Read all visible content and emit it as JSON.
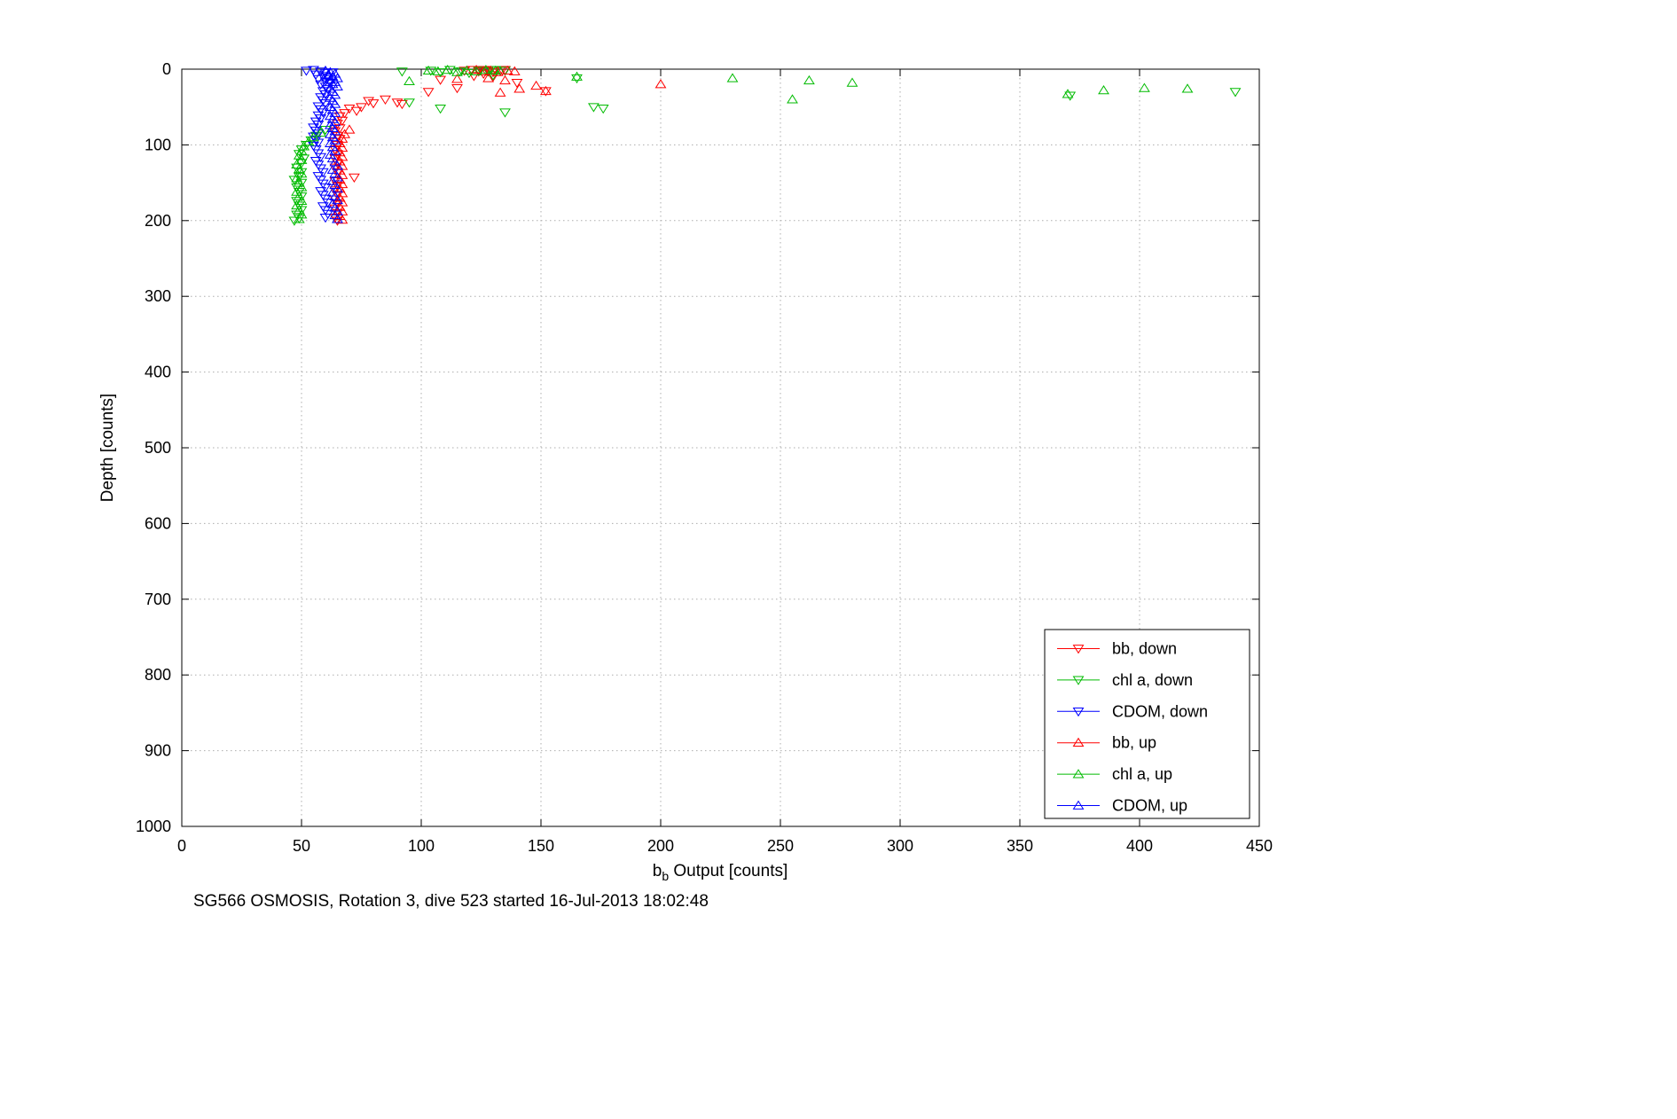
{
  "chart_data": {
    "type": "scatter",
    "title": "SG566 OSMOSIS, Rotation 3, dive 523 started 16-Jul-2013 18:02:48",
    "xlabel": "b_b Output [counts]",
    "xlabel_parts": {
      "pre": "b",
      "sub": "b",
      "post": " Output [counts]"
    },
    "ylabel": "Depth [counts]",
    "xlim": [
      0,
      450
    ],
    "ylim": [
      0,
      1000
    ],
    "y_axis_reversed": true,
    "grid": "dotted",
    "grid_color": "#adadad",
    "axis_color": "#000000",
    "x_ticks": [
      0,
      50,
      100,
      150,
      200,
      250,
      300,
      350,
      400,
      450
    ],
    "y_ticks": [
      0,
      100,
      200,
      300,
      400,
      500,
      600,
      700,
      800,
      900,
      1000
    ],
    "legend_position": "bottom-right-inside",
    "series": [
      {
        "name": "bb, down",
        "marker": "triangle-down",
        "color": "#ff0000",
        "points": [
          [
            118,
            2
          ],
          [
            121,
            1
          ],
          [
            124,
            3
          ],
          [
            127,
            2
          ],
          [
            130,
            4
          ],
          [
            133,
            2
          ],
          [
            126,
            6
          ],
          [
            122,
            9
          ],
          [
            130,
            10
          ],
          [
            135,
            1
          ],
          [
            128,
            1
          ],
          [
            124,
            1
          ],
          [
            108,
            14
          ],
          [
            115,
            25
          ],
          [
            103,
            30
          ],
          [
            152,
            29
          ],
          [
            140,
            18
          ],
          [
            90,
            44
          ],
          [
            85,
            40
          ],
          [
            78,
            42
          ],
          [
            80,
            45
          ],
          [
            92,
            46
          ],
          [
            75,
            50
          ],
          [
            73,
            55
          ],
          [
            70,
            52
          ],
          [
            68,
            58
          ],
          [
            66,
            62
          ],
          [
            67,
            68
          ],
          [
            65,
            72
          ],
          [
            66,
            78
          ],
          [
            64,
            82
          ],
          [
            65,
            88
          ],
          [
            66,
            92
          ],
          [
            64,
            96
          ],
          [
            65,
            100
          ],
          [
            64,
            106
          ],
          [
            65,
            112
          ],
          [
            64,
            118
          ],
          [
            65,
            124
          ],
          [
            64,
            130
          ],
          [
            65,
            136
          ],
          [
            72,
            143
          ],
          [
            64,
            148
          ],
          [
            65,
            154
          ],
          [
            64,
            160
          ],
          [
            65,
            166
          ],
          [
            64,
            172
          ],
          [
            65,
            178
          ],
          [
            64,
            184
          ],
          [
            65,
            190
          ],
          [
            64,
            196
          ],
          [
            65,
            200
          ]
        ]
      },
      {
        "name": "chl a, down",
        "marker": "triangle-down",
        "color": "#00bb00",
        "points": [
          [
            92,
            3
          ],
          [
            104,
            2
          ],
          [
            108,
            4
          ],
          [
            112,
            1
          ],
          [
            116,
            3
          ],
          [
            120,
            5
          ],
          [
            124,
            2
          ],
          [
            128,
            3
          ],
          [
            131,
            1
          ],
          [
            135,
            2
          ],
          [
            130,
            8
          ],
          [
            165,
            12
          ],
          [
            440,
            30
          ],
          [
            371,
            35
          ],
          [
            172,
            50
          ],
          [
            176,
            52
          ],
          [
            135,
            57
          ],
          [
            108,
            52
          ],
          [
            95,
            44
          ],
          [
            60,
            80
          ],
          [
            56,
            88
          ],
          [
            54,
            94
          ],
          [
            52,
            100
          ],
          [
            50,
            106
          ],
          [
            49,
            112
          ],
          [
            51,
            118
          ],
          [
            50,
            124
          ],
          [
            48,
            130
          ],
          [
            50,
            136
          ],
          [
            49,
            142
          ],
          [
            47,
            146
          ],
          [
            50,
            150
          ],
          [
            48,
            156
          ],
          [
            49,
            162
          ],
          [
            50,
            168
          ],
          [
            48,
            174
          ],
          [
            49,
            180
          ],
          [
            50,
            186
          ],
          [
            48,
            192
          ],
          [
            49,
            197
          ],
          [
            47,
            200
          ]
        ]
      },
      {
        "name": "CDOM, down",
        "marker": "triangle-down",
        "color": "#0000ff",
        "points": [
          [
            52,
            2
          ],
          [
            55,
            1
          ],
          [
            58,
            3
          ],
          [
            60,
            5
          ],
          [
            63,
            4
          ],
          [
            56,
            7
          ],
          [
            59,
            9
          ],
          [
            61,
            11
          ],
          [
            57,
            13
          ],
          [
            60,
            16
          ],
          [
            62,
            18
          ],
          [
            58,
            20
          ],
          [
            60,
            23
          ],
          [
            61,
            26
          ],
          [
            59,
            29
          ],
          [
            60,
            33
          ],
          [
            58,
            37
          ],
          [
            59,
            41
          ],
          [
            60,
            45
          ],
          [
            57,
            49
          ],
          [
            58,
            53
          ],
          [
            59,
            57
          ],
          [
            57,
            61
          ],
          [
            58,
            65
          ],
          [
            56,
            69
          ],
          [
            57,
            73
          ],
          [
            55,
            77
          ],
          [
            56,
            81
          ],
          [
            57,
            85
          ],
          [
            55,
            89
          ],
          [
            56,
            93
          ],
          [
            57,
            97
          ],
          [
            55,
            101
          ],
          [
            56,
            106
          ],
          [
            57,
            111
          ],
          [
            58,
            116
          ],
          [
            56,
            121
          ],
          [
            57,
            126
          ],
          [
            58,
            131
          ],
          [
            59,
            136
          ],
          [
            57,
            141
          ],
          [
            58,
            146
          ],
          [
            59,
            151
          ],
          [
            60,
            156
          ],
          [
            58,
            161
          ],
          [
            59,
            166
          ],
          [
            60,
            171
          ],
          [
            61,
            176
          ],
          [
            59,
            181
          ],
          [
            60,
            186
          ],
          [
            61,
            191
          ],
          [
            60,
            196
          ]
        ]
      },
      {
        "name": "bb, up",
        "marker": "triangle-up",
        "color": "#ff0000",
        "points": [
          [
            119,
            2
          ],
          [
            123,
            1
          ],
          [
            126,
            3
          ],
          [
            129,
            2
          ],
          [
            132,
            4
          ],
          [
            136,
            2
          ],
          [
            139,
            3
          ],
          [
            128,
            12
          ],
          [
            135,
            15
          ],
          [
            115,
            13
          ],
          [
            200,
            20
          ],
          [
            148,
            22
          ],
          [
            141,
            26
          ],
          [
            152,
            29
          ],
          [
            133,
            31
          ],
          [
            70,
            80
          ],
          [
            68,
            86
          ],
          [
            67,
            92
          ],
          [
            66,
            98
          ],
          [
            67,
            104
          ],
          [
            66,
            110
          ],
          [
            67,
            116
          ],
          [
            66,
            122
          ],
          [
            67,
            128
          ],
          [
            66,
            134
          ],
          [
            67,
            140
          ],
          [
            66,
            146
          ],
          [
            67,
            152
          ],
          [
            66,
            158
          ],
          [
            67,
            164
          ],
          [
            66,
            170
          ],
          [
            67,
            176
          ],
          [
            66,
            182
          ],
          [
            67,
            188
          ],
          [
            66,
            194
          ],
          [
            67,
            199
          ]
        ]
      },
      {
        "name": "chl a, up",
        "marker": "triangle-up",
        "color": "#00bb00",
        "points": [
          [
            103,
            2
          ],
          [
            107,
            3
          ],
          [
            111,
            1
          ],
          [
            115,
            4
          ],
          [
            119,
            2
          ],
          [
            123,
            3
          ],
          [
            127,
            1
          ],
          [
            131,
            2
          ],
          [
            95,
            16
          ],
          [
            165,
            10
          ],
          [
            230,
            12
          ],
          [
            262,
            15
          ],
          [
            280,
            18
          ],
          [
            255,
            40
          ],
          [
            370,
            33
          ],
          [
            385,
            28
          ],
          [
            402,
            25
          ],
          [
            420,
            26
          ],
          [
            58,
            84
          ],
          [
            55,
            90
          ],
          [
            53,
            96
          ],
          [
            51,
            102
          ],
          [
            50,
            108
          ],
          [
            49,
            114
          ],
          [
            50,
            120
          ],
          [
            48,
            126
          ],
          [
            49,
            132
          ],
          [
            50,
            138
          ],
          [
            48,
            144
          ],
          [
            49,
            150
          ],
          [
            50,
            156
          ],
          [
            48,
            162
          ],
          [
            49,
            168
          ],
          [
            50,
            174
          ],
          [
            48,
            180
          ],
          [
            49,
            186
          ],
          [
            50,
            192
          ],
          [
            49,
            198
          ]
        ]
      },
      {
        "name": "CDOM, up",
        "marker": "triangle-up",
        "color": "#0000ff",
        "points": [
          [
            60,
            2
          ],
          [
            62,
            4
          ],
          [
            64,
            6
          ],
          [
            61,
            8
          ],
          [
            63,
            10
          ],
          [
            65,
            12
          ],
          [
            62,
            14
          ],
          [
            64,
            17
          ],
          [
            63,
            20
          ],
          [
            65,
            23
          ],
          [
            62,
            26
          ],
          [
            63,
            30
          ],
          [
            64,
            34
          ],
          [
            62,
            38
          ],
          [
            63,
            42
          ],
          [
            64,
            46
          ],
          [
            62,
            50
          ],
          [
            63,
            54
          ],
          [
            64,
            58
          ],
          [
            62,
            62
          ],
          [
            63,
            66
          ],
          [
            64,
            70
          ],
          [
            62,
            74
          ],
          [
            63,
            78
          ],
          [
            64,
            82
          ],
          [
            62,
            86
          ],
          [
            63,
            90
          ],
          [
            64,
            94
          ],
          [
            62,
            98
          ],
          [
            63,
            103
          ],
          [
            64,
            108
          ],
          [
            62,
            113
          ],
          [
            63,
            118
          ],
          [
            64,
            123
          ],
          [
            65,
            128
          ],
          [
            63,
            133
          ],
          [
            64,
            138
          ],
          [
            65,
            143
          ],
          [
            63,
            148
          ],
          [
            64,
            153
          ],
          [
            65,
            158
          ],
          [
            63,
            163
          ],
          [
            64,
            168
          ],
          [
            65,
            173
          ],
          [
            63,
            178
          ],
          [
            64,
            183
          ],
          [
            65,
            188
          ],
          [
            64,
            193
          ],
          [
            65,
            198
          ]
        ]
      }
    ]
  }
}
